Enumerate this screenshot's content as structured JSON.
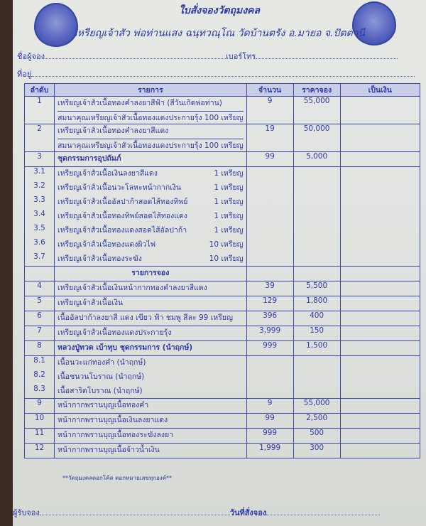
{
  "header": {
    "title": "ใบสั่งจองวัตถุมงคล",
    "subtitle": "เหรียญเจ้าสัว พ่อท่านแสง ฉนฺทวณฺโณ วัดบ้านตรัง อ.มายอ จ.ปัตตานี",
    "name_label": "ชื่อผู้จอง",
    "phone_label": "เบอร์โทร",
    "address_label": "ที่อยู่"
  },
  "table": {
    "columns": [
      "ลำดับ",
      "รายการ",
      "จำนวน",
      "ราคาจอง",
      "เป็นเงิน"
    ],
    "rows": [
      {
        "no": "1",
        "item": "เหรียญเจ้าสัวเนื้อทองคำลงยาสีฟ้า (สีวันเกิดพ่อท่าน)",
        "item2": "สมนาคุณเหรียญเจ้าสัวเนื้อทองแดงประกายรุ้ง 100 เหรียญ",
        "qty": "9",
        "price": "55,000"
      },
      {
        "no": "2",
        "item": "เหรียญเจ้าสัวเนื้อทองคำลงยาสีแดง",
        "item2": "สมนาคุณเหรียญเจ้าสัวเนื้อทองแดงประกายรุ้ง 100 เหรียญ",
        "qty": "19",
        "price": "50,000"
      },
      {
        "no": "3",
        "item": "ชุดกรรมการอุปถัมภ์",
        "qty": "99",
        "price": "5,000",
        "bold": true
      },
      {
        "no": "3.1",
        "item": "เหรียญเจ้าสัวเนื้อเงินลงยาสีแดง",
        "count": "1 เหรียญ",
        "sub": true
      },
      {
        "no": "3.2",
        "item": "เหรียญเจ้าสัวเนื้อนวะโลหะหน้ากากเงิน",
        "count": "1 เหรียญ",
        "sub": true
      },
      {
        "no": "3.3",
        "item": "เหรียญเจ้าสัวเนื้ออัลปาก้าสอดไส้ทองทิพย์",
        "count": "1 เหรียญ",
        "sub": true
      },
      {
        "no": "3.4",
        "item": "เหรียญเจ้าสัวเนื้อทองทิพย์สอดไส้ทองแดง",
        "count": "1 เหรียญ",
        "sub": true
      },
      {
        "no": "3.5",
        "item": "เหรียญเจ้าสัวเนื้อทองแดงสอดไส้อัลปาก้า",
        "count": "1 เหรียญ",
        "sub": true
      },
      {
        "no": "3.6",
        "item": "เหรียญเจ้าสัวเนื้อทองแดงผิวไฟ",
        "count": "10 เหรียญ",
        "sub": true
      },
      {
        "no": "3.7",
        "item": "เหรียญเจ้าสัวเนื้อทองระฆัง",
        "count": "10 เหรียญ",
        "sub": true,
        "last": true
      },
      {
        "no": "",
        "item": "รายการจอง",
        "section": true
      },
      {
        "no": "4",
        "item": "เหรียญเจ้าสัวเนื้อเงินหน้ากากทองคำลงยาสีแดง",
        "qty": "39",
        "price": "5,500"
      },
      {
        "no": "5",
        "item": "เหรียญเจ้าสัวเนื้อเงิน",
        "qty": "129",
        "price": "1,800"
      },
      {
        "no": "6",
        "item": "เนื้ออัลปาก้าลงยาสี แดง เขียว ฟ้า ชมพู สีละ 99 เหรียญ",
        "qty": "396",
        "price": "400"
      },
      {
        "no": "7",
        "item": "เหรียญเจ้าสัวเนื้อทองแดงประกายรุ้ง",
        "qty": "3,999",
        "price": "150"
      },
      {
        "no": "8",
        "item": "หลวงปู่ทวด เบ้าทุบ ชุดกรรมการ (นำฤกษ์)",
        "qty": "999",
        "price": "1,500",
        "bold": true
      },
      {
        "no": "8.1",
        "item": "เนื้อนวะแก่ทองคำ (นำฤกษ์)",
        "sub": true
      },
      {
        "no": "8.2",
        "item": "เนื้อชนวนโบราณ (นำฤกษ์)",
        "sub": true
      },
      {
        "no": "8.3",
        "item": "เนื้อสาริดโบราณ (นำฤกษ์)",
        "sub": true,
        "last": true
      },
      {
        "no": "9",
        "item": "หน้ากากพรานบุญเนื้อทองคำ",
        "qty": "9",
        "price": "55,000"
      },
      {
        "no": "10",
        "item": "หน้ากากพรานบุญเนื้อเงินลงยาแดง",
        "qty": "99",
        "price": "2,500"
      },
      {
        "no": "11",
        "item": "หน้ากากพรานบุญเนื้อทองระฆังลงยา",
        "qty": "999",
        "price": "500"
      },
      {
        "no": "12",
        "item": "หน้ากากพรานบุญเนื้อจ้าวน้ำเงิน",
        "qty": "1,999",
        "price": "300"
      }
    ]
  },
  "note": "**วัตถุมงคลดอกโค้ด ตอกหมายเลขทุกองค์**",
  "footer": {
    "receiver_label": "ผู้รับจอง",
    "date_label": "วันที่สั่งจอง"
  },
  "colors": {
    "ink": "#2f3aa8",
    "paper": "#e2e5e0",
    "header_fill": "#c9cde6"
  }
}
